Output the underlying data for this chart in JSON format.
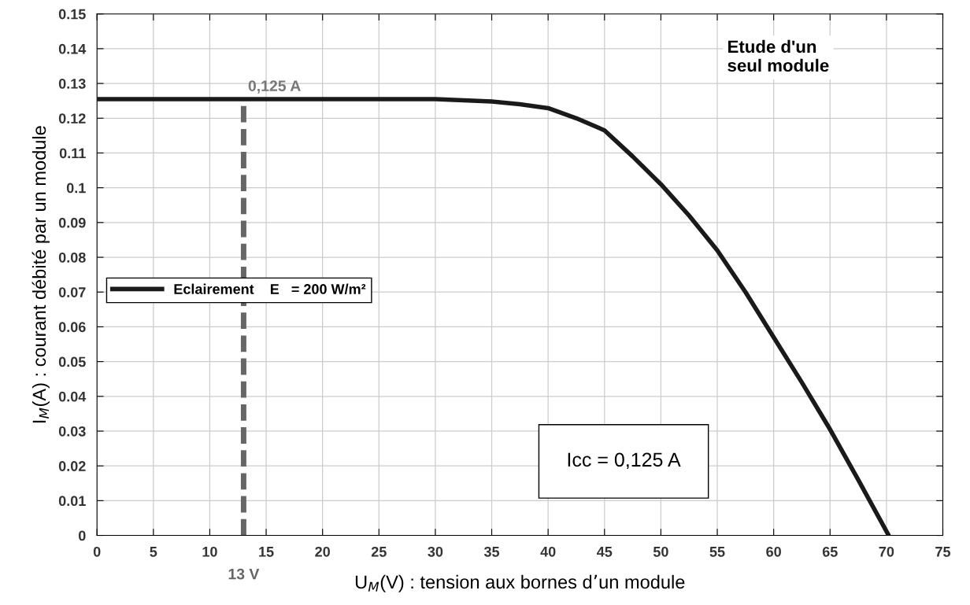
{
  "chart_data": {
    "type": "line",
    "xlabel": "U$_{M}$(V) : tension aux bornes d’un module",
    "ylabel": "I$_{M}$(A) : courant débité par un module",
    "x": [
      0,
      5,
      10,
      15,
      20,
      25,
      30,
      35,
      37.5,
      40,
      42.5,
      45,
      47.5,
      50,
      52.5,
      55,
      57.5,
      60,
      62.5,
      65,
      67.5,
      70.2
    ],
    "series": [
      {
        "name": "Eclairement    E   = 200 W/m²",
        "color": "#1a1a1a",
        "values": [
          0.1255,
          0.1255,
          0.1255,
          0.1255,
          0.1255,
          0.1255,
          0.1255,
          0.1248,
          0.124,
          0.1229,
          0.12,
          0.1165,
          0.109,
          0.101,
          0.092,
          0.082,
          0.07,
          0.057,
          0.044,
          0.0305,
          0.016,
          0
        ]
      }
    ],
    "xlim": [
      0,
      75
    ],
    "xticks": [
      0,
      5,
      10,
      15,
      20,
      25,
      30,
      35,
      40,
      45,
      50,
      55,
      60,
      65,
      70,
      75
    ],
    "ylim": [
      0,
      0.15
    ],
    "yticks": [
      0,
      0.01,
      0.02,
      0.03,
      0.04,
      0.05,
      0.06,
      0.07,
      0.08,
      0.09,
      0.1,
      0.11,
      0.12,
      0.13,
      0.14,
      0.15
    ],
    "ref_lines": [
      {
        "axis": "x",
        "value": 13,
        "label": "13 V",
        "color": "#666666",
        "line_style": "dashed"
      }
    ],
    "annotations": [
      {
        "text": "0,125 A",
        "x": 13,
        "y": 0.125
      },
      "Etude d'un\nseul module",
      "Icc = 0,125 A"
    ],
    "grid": true,
    "legend": "left",
    "marker": "none",
    "line_style": "solid"
  }
}
